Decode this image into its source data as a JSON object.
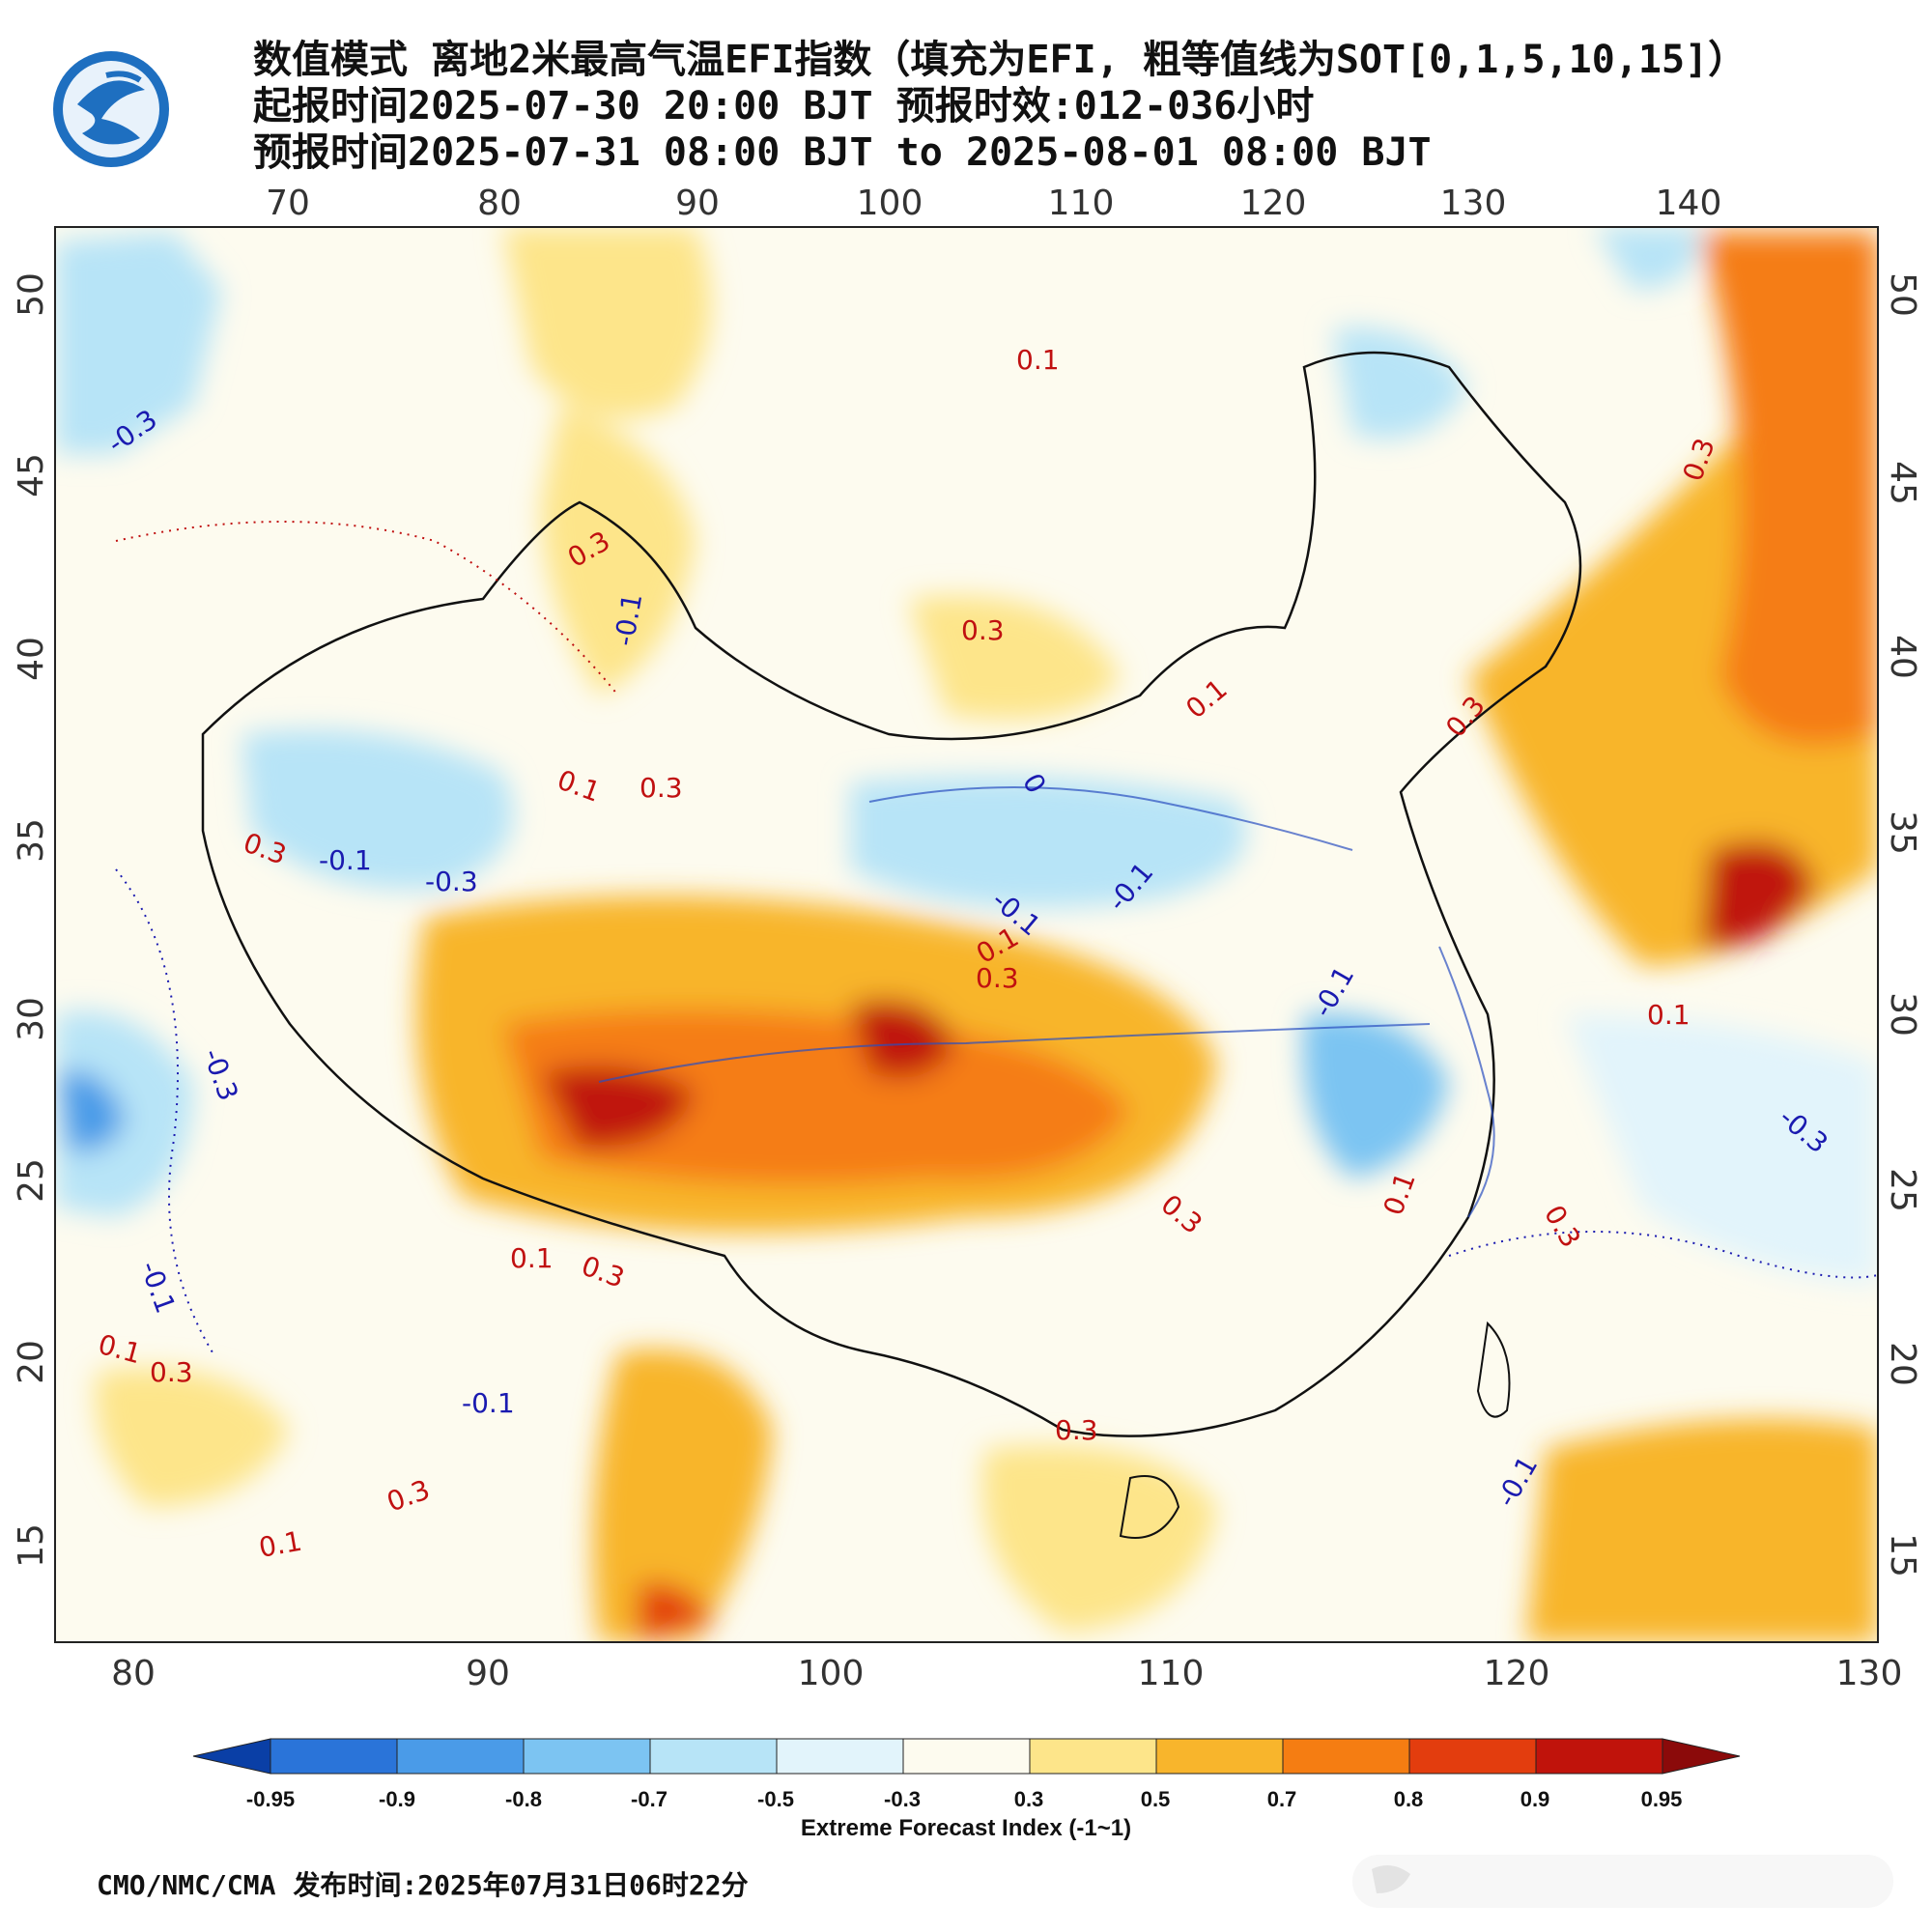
{
  "header": {
    "title_line1": "数值模式 离地2米最高气温EFI指数（填充为EFI, 粗等值线为SOT[0,1,5,10,15]）",
    "title_line2": "起报时间2025-07-30 20:00 BJT 预报时效:012-036小时",
    "title_line3": "预报时间2025-07-31 08:00 BJT to 2025-08-01 08:00 BJT"
  },
  "map": {
    "top_lon_ticks": [
      "70",
      "80",
      "90",
      "100",
      "110",
      "120",
      "130",
      "140"
    ],
    "bottom_lon_ticks": [
      "80",
      "90",
      "100",
      "110",
      "120",
      "130"
    ],
    "left_lat_ticks": [
      "50",
      "45",
      "40",
      "35",
      "30",
      "25",
      "20",
      "15"
    ],
    "right_lat_ticks": [
      "50",
      "45",
      "40",
      "35",
      "30",
      "25",
      "20",
      "15"
    ],
    "contour_labels_red": [
      "0.1",
      "0.3",
      "0.3",
      "0.3",
      "0.1",
      "0.3",
      "0.1",
      "0.3",
      "0.3",
      "0.1",
      "0.3",
      "0.1",
      "0.3",
      "0.1",
      "0.3",
      "0.3",
      "0.1",
      "0.3",
      "0.3",
      "0.1",
      "0.1",
      "0.3"
    ],
    "contour_labels_blue": [
      "-0.3",
      "-0.1",
      "-0.3",
      "-0.1",
      "-0.3",
      "-0.1",
      "-0.1",
      "-0.1",
      "-0.1",
      "-0.3",
      "-0.1",
      "0",
      "-0.1"
    ]
  },
  "colorbar": {
    "title": "Extreme Forecast Index (-1~1)",
    "ticks": [
      "-0.95",
      "-0.9",
      "-0.8",
      "-0.7",
      "-0.5",
      "-0.3",
      "0.3",
      "0.5",
      "0.7",
      "0.8",
      "0.9",
      "0.95"
    ],
    "colors": [
      "#0a3fa6",
      "#2a74d9",
      "#4a9be8",
      "#7cc4f2",
      "#b7e4f7",
      "#e2f4fb",
      "#fdfbef",
      "#fde58a",
      "#f8b52c",
      "#f57d12",
      "#e33d0e",
      "#c0130b",
      "#8b0a0a"
    ]
  },
  "footer": {
    "agency": "CMO/NMC/CMA",
    "release_label": "发布时间:",
    "release_time": "2025年07月31日06时22分"
  }
}
